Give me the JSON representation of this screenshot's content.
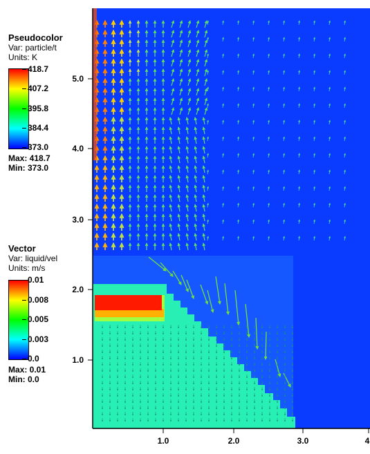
{
  "legend_pseudocolor": {
    "title": "Pseudocolor",
    "var": "Var: particle/t",
    "units": "Units: K",
    "ticks": [
      "418.7",
      "407.2",
      "395.8",
      "384.4",
      "373.0"
    ],
    "max": "Max:  418.7",
    "min": "Min:  373.0"
  },
  "legend_vector": {
    "title": "Vector",
    "var": "Var: liquid/vel",
    "units": "Units: m/s",
    "ticks": [
      "0.01",
      "0.008",
      "0.005",
      "0.003",
      "0.0"
    ],
    "max": "Max:  0.01",
    "min": "Min:  0.0"
  },
  "colors": {
    "background_field": "#0a3cff",
    "lower_field": "#1f6fff",
    "solid_region": "#28f0b4",
    "hot_block": "#ff1a00",
    "vector_default": "#80e080"
  },
  "chart_data": {
    "type": "heatmap",
    "description_type": "pseudocolor field with overlaid velocity vectors",
    "x_ticks": [
      "1.0",
      "2.0",
      "3.0",
      "4"
    ],
    "y_ticks": [
      "1.0",
      "2.0",
      "3.0",
      "4.0",
      "5.0"
    ],
    "xlim": [
      0,
      4
    ],
    "ylim": [
      0,
      6
    ],
    "pseudocolor": {
      "variable": "particle/t",
      "units": "K",
      "min": 373.0,
      "max": 418.7
    },
    "vector": {
      "variable": "liquid/vel",
      "units": "m/s",
      "min": 0.0,
      "max": 0.01
    },
    "regions": [
      {
        "name": "solid-region",
        "x_range": [
          0,
          1.05
        ],
        "y_top": 2.08,
        "staircase_edge": [
          [
            1.05,
            2.08
          ],
          [
            2.95,
            0.05
          ]
        ]
      },
      {
        "name": "hot-block",
        "x_range": [
          0.05,
          0.95
        ],
        "y_range": [
          1.6,
          1.9
        ],
        "temperature_K": 418.7
      }
    ]
  }
}
